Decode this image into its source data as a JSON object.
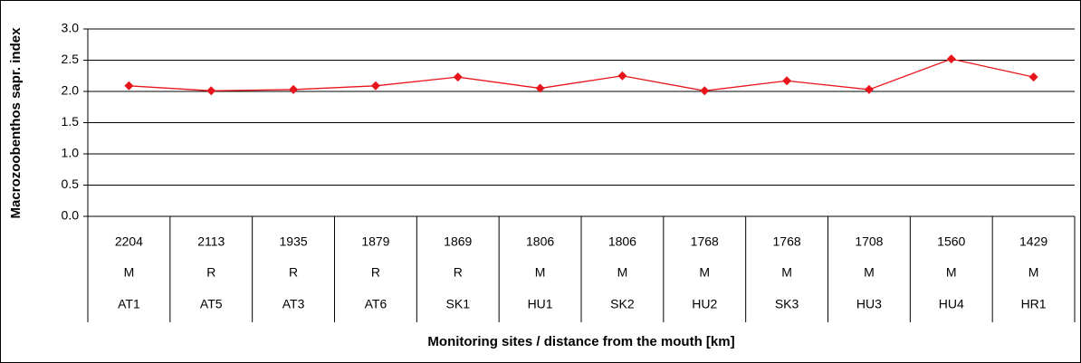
{
  "chart_data": {
    "type": "line",
    "y_label": "Macrozoobenthos sapr. index",
    "x_label": "Monitoring sites / distance from the mouth [km]",
    "category_rows": [
      [
        "2204",
        "2113",
        "1935",
        "1879",
        "1869",
        "1806",
        "1806",
        "1768",
        "1768",
        "1708",
        "1560",
        "1429"
      ],
      [
        "M",
        "R",
        "R",
        "R",
        "R",
        "M",
        "M",
        "M",
        "M",
        "M",
        "M",
        "M"
      ]
    ],
    "categories": [
      "AT1",
      "AT5",
      "AT3",
      "AT6",
      "SK1",
      "HU1",
      "SK2",
      "HU2",
      "SK3",
      "HU3",
      "HU4",
      "HR1"
    ],
    "values": [
      2.09,
      2.01,
      2.03,
      2.09,
      2.23,
      2.05,
      2.25,
      2.01,
      2.17,
      2.03,
      2.52,
      2.23
    ],
    "color": "#e8141b",
    "ylim": [
      0,
      3
    ],
    "yticks": [
      {
        "value": 0,
        "label": "0.0"
      },
      0.5,
      {
        "value": 1,
        "label": "1.0"
      },
      1.5,
      {
        "value": 2,
        "label": "2.0"
      },
      2.5,
      {
        "value": 3,
        "label": "3.0"
      }
    ],
    "grid": true
  }
}
